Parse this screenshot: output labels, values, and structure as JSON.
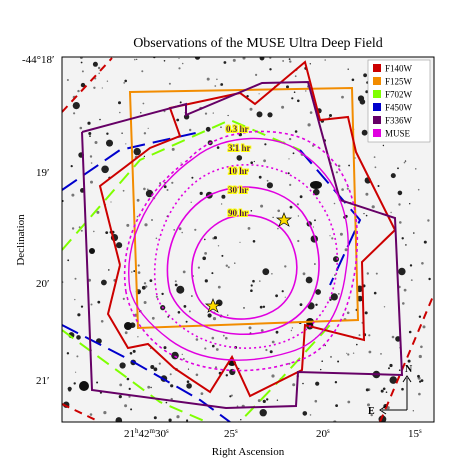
{
  "title": "Observations of the MUSE Ultra Deep Field",
  "xlabel": "Right Ascension",
  "ylabel": "Declination",
  "x_ticks": [
    {
      "hours": "21",
      "minutes": "42",
      "seconds": "30",
      "label": ""
    },
    {
      "label": "25",
      "sup": "s"
    },
    {
      "label": "20",
      "sup": "s"
    },
    {
      "label": "15",
      "sup": "s"
    }
  ],
  "y_ticks": [
    {
      "label": "-44°18′"
    },
    {
      "label": "19′"
    },
    {
      "label": "20′"
    },
    {
      "label": "21′"
    }
  ],
  "legend": [
    {
      "name": "F140W",
      "color": "#cc0000"
    },
    {
      "name": "F125W",
      "color": "#f28c00"
    },
    {
      "name": "F702W",
      "color": "#7fff00"
    },
    {
      "name": "F450W",
      "color": "#0000cc"
    },
    {
      "name": "F336W",
      "color": "#660066"
    },
    {
      "name": "MUSE",
      "color": "#e000e0"
    }
  ],
  "contour_labels": [
    "0.3 hr",
    "3.1 hr",
    "10 hr",
    "30 hr",
    "90 hr"
  ],
  "compass": {
    "north": "N",
    "east": "E"
  }
}
